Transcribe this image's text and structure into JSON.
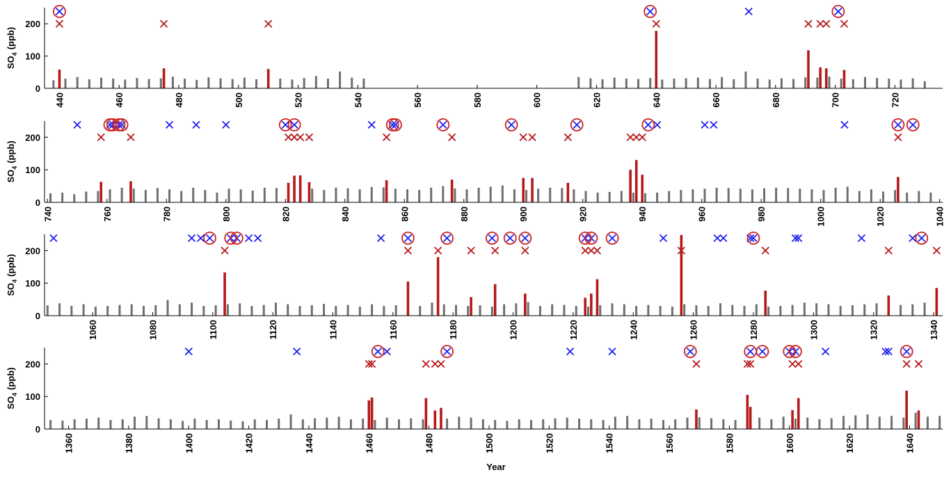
{
  "xlabel": "Year",
  "colors": {
    "background": "#6e6e6e",
    "event": "#b5191a",
    "detected": "#2020f0",
    "matched": "#cc1f1f"
  },
  "chart_data": [
    {
      "type": "bar",
      "ylabel": {
        "text": "SO",
        "sub": "4",
        "unit": "(ppb)"
      },
      "xlim": [
        435,
        736
      ],
      "xticks": [
        440,
        460,
        480,
        500,
        520,
        540,
        560,
        580,
        600,
        620,
        640,
        660,
        680,
        700,
        720
      ],
      "ylim": [
        0,
        250
      ],
      "yticks": [
        0,
        100,
        200
      ],
      "background": {
        "x": [
          438,
          442,
          446,
          450,
          454,
          458,
          462,
          466,
          470,
          474,
          478,
          482,
          486,
          490,
          494,
          498,
          502,
          506,
          510,
          514,
          518,
          522,
          526,
          530,
          534,
          538,
          542,
          614,
          618,
          622,
          626,
          630,
          634,
          638,
          642,
          646,
          650,
          654,
          658,
          662,
          666,
          670,
          674,
          678,
          682,
          686,
          690,
          694,
          698,
          702,
          706,
          710,
          714,
          718,
          722,
          726,
          730
        ],
        "values": [
          25,
          30,
          35,
          28,
          33,
          30,
          27,
          32,
          29,
          31,
          36,
          30,
          26,
          34,
          31,
          29,
          33,
          28,
          35,
          30,
          27,
          32,
          38,
          30,
          52,
          33,
          30,
          35,
          31,
          28,
          33,
          30,
          29,
          32,
          27,
          30,
          31,
          33,
          29,
          35,
          28,
          52,
          30,
          27,
          31,
          29,
          34,
          33,
          36,
          30,
          28,
          35,
          32,
          30,
          27,
          31,
          22
        ]
      },
      "events": {
        "x": [
          440,
          475,
          510,
          640,
          691,
          695,
          697,
          703
        ],
        "values": [
          58,
          62,
          60,
          178,
          118,
          65,
          62,
          57
        ]
      },
      "red_x": [
        440,
        475,
        510,
        640,
        691,
        695,
        697,
        703
      ],
      "blue_x": [
        440,
        638,
        671,
        701
      ],
      "circles": [
        440,
        638,
        701
      ]
    },
    {
      "type": "bar",
      "ylabel": {
        "text": "SO",
        "sub": "4",
        "unit": "(ppb)"
      },
      "xlim": [
        739,
        1041
      ],
      "xticks": [
        740,
        760,
        780,
        800,
        820,
        840,
        860,
        880,
        900,
        920,
        940,
        960,
        980,
        1000,
        1020,
        1040
      ],
      "ylim": [
        0,
        250
      ],
      "yticks": [
        0,
        100,
        200
      ],
      "background": {
        "x": [
          741,
          745,
          749,
          753,
          757,
          761,
          765,
          769,
          773,
          777,
          781,
          785,
          789,
          793,
          797,
          801,
          805,
          809,
          813,
          817,
          821,
          825,
          829,
          833,
          837,
          841,
          845,
          849,
          853,
          857,
          861,
          865,
          869,
          873,
          877,
          881,
          885,
          889,
          893,
          897,
          901,
          905,
          909,
          913,
          917,
          921,
          925,
          929,
          933,
          937,
          941,
          945,
          949,
          953,
          957,
          961,
          965,
          969,
          973,
          977,
          981,
          985,
          989,
          993,
          997,
          1001,
          1005,
          1009,
          1013,
          1017,
          1021,
          1025,
          1029,
          1033,
          1037
        ],
        "values": [
          28,
          30,
          25,
          33,
          35,
          40,
          45,
          42,
          38,
          44,
          40,
          35,
          45,
          38,
          30,
          42,
          40,
          36,
          45,
          44,
          40,
          48,
          42,
          38,
          45,
          43,
          40,
          47,
          46,
          42,
          40,
          38,
          45,
          50,
          43,
          40,
          45,
          48,
          52,
          40,
          38,
          42,
          45,
          44,
          40,
          35,
          30,
          32,
          35,
          30,
          28,
          30,
          35,
          38,
          40,
          42,
          45,
          44,
          42,
          40,
          43,
          45,
          44,
          42,
          40,
          38,
          45,
          48,
          35,
          40,
          33,
          38,
          30,
          35,
          30
        ]
      },
      "events": {
        "x": [
          758,
          768,
          821,
          823,
          825,
          828,
          854,
          876,
          900,
          903,
          915,
          936,
          938,
          940,
          1026
        ],
        "values": [
          63,
          65,
          60,
          82,
          83,
          62,
          68,
          70,
          75,
          75,
          60,
          100,
          130,
          85,
          78
        ]
      },
      "red_x": [
        758,
        768,
        821,
        823,
        825,
        828,
        854,
        876,
        900,
        903,
        915,
        936,
        938,
        940,
        1026
      ],
      "blue_x": [
        750,
        761,
        762,
        764,
        765,
        781,
        790,
        800,
        820,
        823,
        849,
        856,
        857,
        873,
        896,
        918,
        942,
        945,
        961,
        964,
        1008,
        1026,
        1031
      ],
      "circles": [
        761,
        762,
        764,
        765,
        820,
        823,
        856,
        857,
        873,
        896,
        918,
        942,
        1026,
        1031
      ]
    },
    {
      "type": "bar",
      "ylabel": {
        "text": "SO",
        "sub": "4",
        "unit": "(ppb)"
      },
      "xlim": [
        1044,
        1343
      ],
      "xticks": [
        1060,
        1080,
        1100,
        1120,
        1140,
        1160,
        1180,
        1200,
        1220,
        1240,
        1260,
        1280,
        1300,
        1320,
        1340
      ],
      "ylim": [
        0,
        250
      ],
      "yticks": [
        0,
        100,
        200
      ],
      "background": {
        "x": [
          1045,
          1049,
          1053,
          1057,
          1061,
          1065,
          1069,
          1073,
          1077,
          1081,
          1085,
          1089,
          1093,
          1097,
          1101,
          1105,
          1109,
          1113,
          1117,
          1121,
          1125,
          1129,
          1133,
          1137,
          1141,
          1145,
          1149,
          1153,
          1157,
          1161,
          1165,
          1169,
          1173,
          1177,
          1181,
          1185,
          1189,
          1193,
          1197,
          1201,
          1205,
          1209,
          1213,
          1217,
          1221,
          1225,
          1229,
          1233,
          1237,
          1241,
          1245,
          1249,
          1253,
          1257,
          1261,
          1265,
          1269,
          1273,
          1277,
          1281,
          1285,
          1289,
          1293,
          1297,
          1301,
          1305,
          1309,
          1313,
          1317,
          1321,
          1325,
          1329,
          1333,
          1337,
          1341
        ],
        "values": [
          32,
          38,
          30,
          35,
          28,
          30,
          33,
          35,
          30,
          32,
          48,
          35,
          40,
          30,
          32,
          35,
          38,
          30,
          33,
          40,
          35,
          30,
          32,
          36,
          30,
          33,
          28,
          35,
          30,
          32,
          38,
          30,
          40,
          35,
          33,
          30,
          32,
          28,
          35,
          38,
          42,
          30,
          35,
          33,
          30,
          28,
          32,
          38,
          35,
          30,
          33,
          30,
          28,
          35,
          32,
          30,
          38,
          33,
          30,
          35,
          28,
          30,
          33,
          40,
          38,
          35,
          30,
          32,
          35,
          38,
          30,
          33,
          35,
          40,
          32
        ]
      },
      "events": {
        "x": [
          1104,
          1165,
          1175,
          1186,
          1194,
          1204,
          1224,
          1226,
          1228,
          1256,
          1284,
          1325,
          1341
        ],
        "values": [
          133,
          105,
          180,
          57,
          97,
          68,
          55,
          68,
          112,
          248,
          77,
          62,
          85
        ]
      },
      "red_x": [
        1104,
        1165,
        1175,
        1186,
        1194,
        1204,
        1224,
        1226,
        1228,
        1256,
        1284,
        1325,
        1341
      ],
      "blue_x": [
        1047,
        1093,
        1096,
        1099,
        1106,
        1108,
        1112,
        1115,
        1156,
        1165,
        1178,
        1193,
        1199,
        1204,
        1224,
        1226,
        1233,
        1250,
        1268,
        1270,
        1279,
        1280,
        1294,
        1295,
        1316,
        1333,
        1336
      ],
      "circles": [
        1099,
        1106,
        1108,
        1165,
        1178,
        1193,
        1199,
        1204,
        1224,
        1226,
        1233,
        1280,
        1336
      ]
    },
    {
      "type": "bar",
      "ylabel": {
        "text": "SO",
        "sub": "4",
        "unit": "(ppb)"
      },
      "xlim": [
        1352,
        1651
      ],
      "xticks": [
        1360,
        1380,
        1400,
        1420,
        1440,
        1460,
        1480,
        1500,
        1520,
        1540,
        1560,
        1580,
        1600,
        1620,
        1640
      ],
      "ylim": [
        0,
        250
      ],
      "yticks": [
        0,
        100,
        200
      ],
      "background": {
        "x": [
          1354,
          1358,
          1362,
          1366,
          1370,
          1374,
          1378,
          1382,
          1386,
          1390,
          1394,
          1398,
          1402,
          1406,
          1410,
          1414,
          1418,
          1422,
          1426,
          1430,
          1434,
          1438,
          1442,
          1446,
          1450,
          1454,
          1458,
          1462,
          1466,
          1470,
          1474,
          1478,
          1482,
          1486,
          1490,
          1494,
          1498,
          1502,
          1506,
          1510,
          1514,
          1518,
          1522,
          1526,
          1530,
          1534,
          1538,
          1542,
          1546,
          1550,
          1554,
          1558,
          1562,
          1566,
          1570,
          1574,
          1578,
          1582,
          1586,
          1590,
          1594,
          1598,
          1602,
          1606,
          1610,
          1614,
          1618,
          1622,
          1626,
          1630,
          1634,
          1638,
          1642,
          1646,
          1650
        ],
        "values": [
          28,
          26,
          30,
          32,
          35,
          28,
          30,
          38,
          40,
          33,
          30,
          25,
          32,
          28,
          30,
          26,
          24,
          30,
          28,
          32,
          45,
          30,
          33,
          35,
          38,
          30,
          32,
          28,
          35,
          30,
          33,
          30,
          36,
          32,
          38,
          35,
          30,
          28,
          25,
          30,
          28,
          30,
          33,
          35,
          32,
          30,
          28,
          38,
          40,
          30,
          32,
          28,
          30,
          35,
          36,
          33,
          30,
          28,
          32,
          35,
          30,
          38,
          32,
          35,
          30,
          33,
          40,
          42,
          45,
          38,
          40,
          35,
          50,
          38,
          40
        ]
      },
      "events": {
        "x": [
          1460,
          1461,
          1479,
          1482,
          1484,
          1569,
          1586,
          1587,
          1601,
          1603,
          1639,
          1643
        ],
        "values": [
          88,
          97,
          95,
          57,
          65,
          60,
          105,
          68,
          58,
          95,
          118,
          57
        ]
      },
      "red_x": [
        1460,
        1461,
        1479,
        1482,
        1484,
        1569,
        1586,
        1587,
        1601,
        1603,
        1639,
        1643
      ],
      "blue_x": [
        1400,
        1436,
        1463,
        1466,
        1486,
        1527,
        1541,
        1567,
        1587,
        1591,
        1600,
        1602,
        1612,
        1632,
        1633,
        1639
      ],
      "circles": [
        1463,
        1486,
        1567,
        1587,
        1591,
        1600,
        1602,
        1639
      ]
    }
  ]
}
